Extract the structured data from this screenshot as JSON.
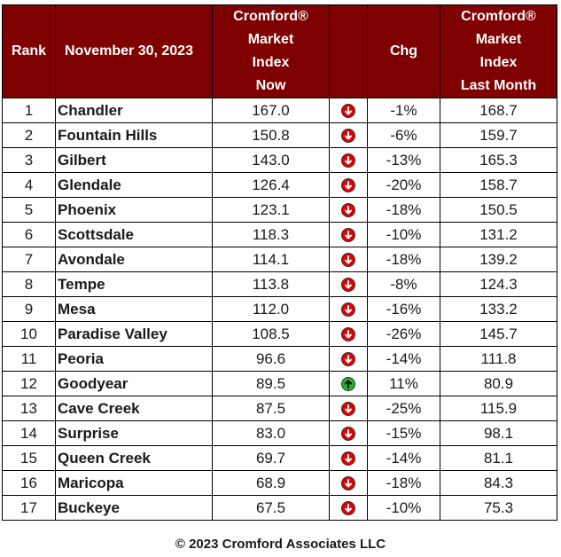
{
  "header": {
    "rank": "Rank",
    "date": "November 30, 2023",
    "now": [
      "Cromford®",
      "Market",
      "Index",
      "Now"
    ],
    "chg": "Chg",
    "last": [
      "Cromford®",
      "Market",
      "Index",
      "Last Month"
    ]
  },
  "rows": [
    {
      "rank": "1",
      "city": "Chandler",
      "now": "167.0",
      "dir": "down",
      "chg": "-1%",
      "last": "168.7"
    },
    {
      "rank": "2",
      "city": "Fountain Hills",
      "now": "150.8",
      "dir": "down",
      "chg": "-6%",
      "last": "159.7"
    },
    {
      "rank": "3",
      "city": "Gilbert",
      "now": "143.0",
      "dir": "down",
      "chg": "-13%",
      "last": "165.3"
    },
    {
      "rank": "4",
      "city": "Glendale",
      "now": "126.4",
      "dir": "down",
      "chg": "-20%",
      "last": "158.7"
    },
    {
      "rank": "5",
      "city": "Phoenix",
      "now": "123.1",
      "dir": "down",
      "chg": "-18%",
      "last": "150.5"
    },
    {
      "rank": "6",
      "city": "Scottsdale",
      "now": "118.3",
      "dir": "down",
      "chg": "-10%",
      "last": "131.2"
    },
    {
      "rank": "7",
      "city": "Avondale",
      "now": "114.1",
      "dir": "down",
      "chg": "-18%",
      "last": "139.2"
    },
    {
      "rank": "8",
      "city": "Tempe",
      "now": "113.8",
      "dir": "down",
      "chg": "-8%",
      "last": "124.3"
    },
    {
      "rank": "9",
      "city": "Mesa",
      "now": "112.0",
      "dir": "down",
      "chg": "-16%",
      "last": "133.2"
    },
    {
      "rank": "10",
      "city": "Paradise Valley",
      "now": "108.5",
      "dir": "down",
      "chg": "-26%",
      "last": "145.7"
    },
    {
      "rank": "11",
      "city": "Peoria",
      "now": "96.6",
      "dir": "down",
      "chg": "-14%",
      "last": "111.8"
    },
    {
      "rank": "12",
      "city": "Goodyear",
      "now": "89.5",
      "dir": "up",
      "chg": "11%",
      "last": "80.9"
    },
    {
      "rank": "13",
      "city": "Cave Creek",
      "now": "87.5",
      "dir": "down",
      "chg": "-25%",
      "last": "115.9"
    },
    {
      "rank": "14",
      "city": "Surprise",
      "now": "83.0",
      "dir": "down",
      "chg": "-15%",
      "last": "98.1"
    },
    {
      "rank": "15",
      "city": "Queen Creek",
      "now": "69.7",
      "dir": "down",
      "chg": "-14%",
      "last": "81.1"
    },
    {
      "rank": "16",
      "city": "Maricopa",
      "now": "68.9",
      "dir": "down",
      "chg": "-18%",
      "last": "84.3"
    },
    {
      "rank": "17",
      "city": "Buckeye",
      "now": "67.5",
      "dir": "down",
      "chg": "-10%",
      "last": "75.3"
    }
  ],
  "icons": {
    "down": "arrow-down-icon",
    "up": "arrow-up-icon"
  },
  "colors": {
    "header_bg": "#7f0000",
    "down": "#e00000",
    "up": "#22b22a"
  },
  "footer": "© 2023 Cromford Associates LLC"
}
